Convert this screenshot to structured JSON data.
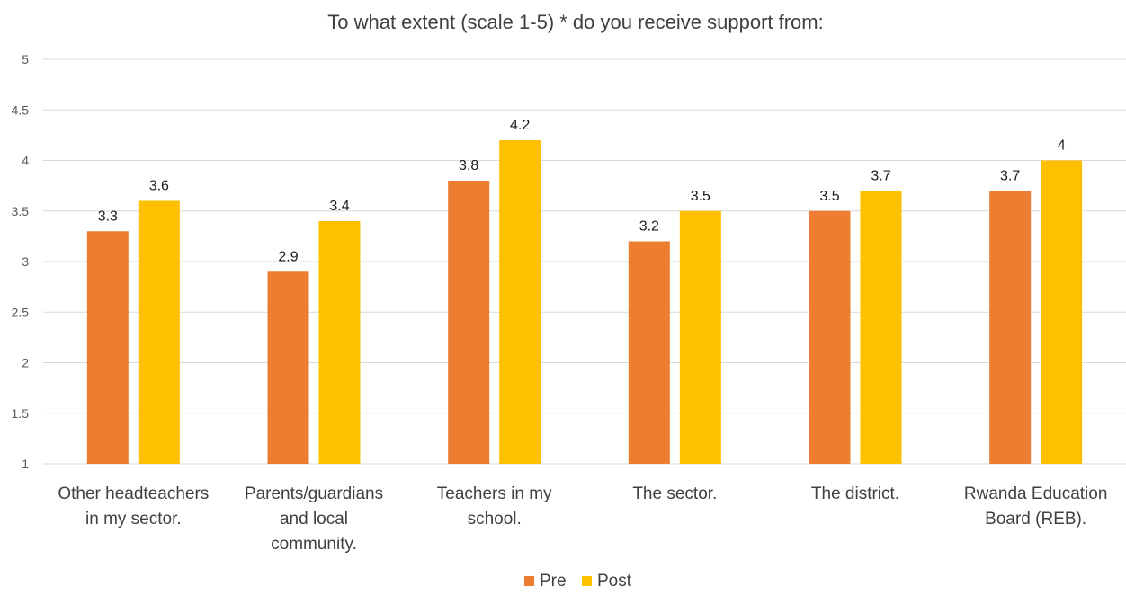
{
  "chart_data": {
    "type": "bar",
    "title": "To what extent (scale 1-5) * do you receive support from:",
    "xlabel": "",
    "ylabel": "",
    "ylim": [
      1,
      5
    ],
    "yticks": [
      "1",
      "1.5",
      "2",
      "2.5",
      "3",
      "3.5",
      "4",
      "4.5",
      "5"
    ],
    "ytick_values": [
      1,
      1.5,
      2,
      2.5,
      3,
      3.5,
      4,
      4.5,
      5
    ],
    "categories": [
      [
        "Other headteachers",
        "in my sector."
      ],
      [
        "Parents/guardians",
        "and local",
        "community."
      ],
      [
        "Teachers in my",
        "school."
      ],
      [
        "The sector."
      ],
      [
        "The district."
      ],
      [
        "Rwanda Education",
        "Board (REB)."
      ]
    ],
    "series": [
      {
        "name": "Pre",
        "color": "#ED7D31",
        "values": [
          3.3,
          2.9,
          3.8,
          3.2,
          3.5,
          3.7
        ],
        "labels": [
          "3.3",
          "2.9",
          "3.8",
          "3.2",
          "3.5",
          "3.7"
        ]
      },
      {
        "name": "Post",
        "color": "#FFC000",
        "values": [
          3.6,
          3.4,
          4.2,
          3.5,
          3.7,
          4.0
        ],
        "labels": [
          "3.6",
          "3.4",
          "4.2",
          "3.5",
          "3.7",
          "4"
        ]
      }
    ],
    "grid": true,
    "legend": "bottom-center",
    "gridline_color": "#d9d9d9"
  }
}
